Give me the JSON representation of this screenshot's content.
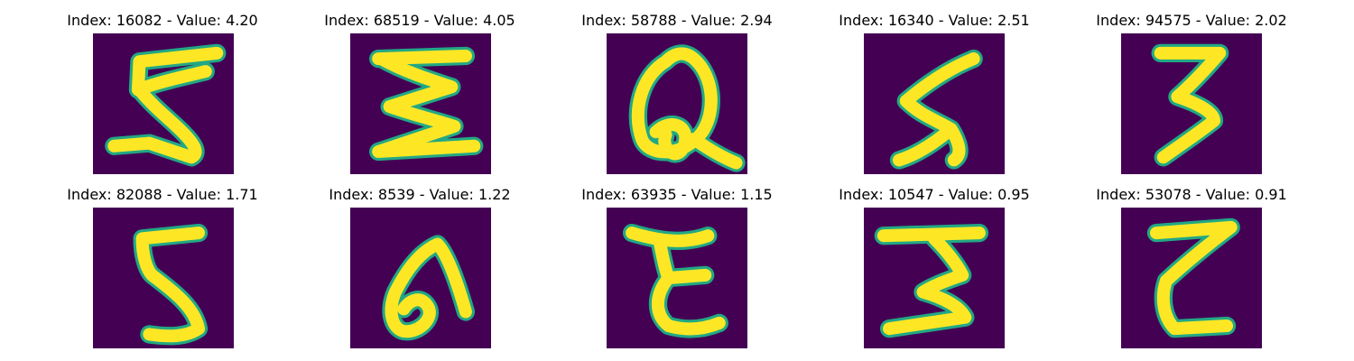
{
  "figure": {
    "background_color": "#440154",
    "stroke_color": "#fde725",
    "edge_color": "#22a884",
    "panels": [
      {
        "title": "Index: 16082 - Value: 4.20",
        "index": 16082,
        "value": 4.2,
        "depicted_glyph": "5"
      },
      {
        "title": "Index: 68519 - Value: 4.05",
        "index": 68519,
        "value": 4.05,
        "depicted_glyph": "Σ"
      },
      {
        "title": "Index: 58788 - Value: 2.94",
        "index": 58788,
        "value": 2.94,
        "depicted_glyph": "Q"
      },
      {
        "title": "Index: 16340 - Value: 2.51",
        "index": 16340,
        "value": 2.51,
        "depicted_glyph": "S"
      },
      {
        "title": "Index: 94575 - Value: 2.02",
        "index": 94575,
        "value": 2.02,
        "depicted_glyph": "3"
      },
      {
        "title": "Index: 82088 - Value: 1.71",
        "index": 82088,
        "value": 1.71,
        "depicted_glyph": "5"
      },
      {
        "title": "Index: 8539 - Value: 1.22",
        "index": 8539,
        "value": 1.22,
        "depicted_glyph": "6"
      },
      {
        "title": "Index: 63935 - Value: 1.15",
        "index": 63935,
        "value": 1.15,
        "depicted_glyph": "ε"
      },
      {
        "title": "Index: 10547 - Value: 0.95",
        "index": 10547,
        "value": 0.95,
        "depicted_glyph": "3"
      },
      {
        "title": "Index: 53078 - Value: 0.91",
        "index": 53078,
        "value": 0.91,
        "depicted_glyph": "Z"
      }
    ]
  }
}
